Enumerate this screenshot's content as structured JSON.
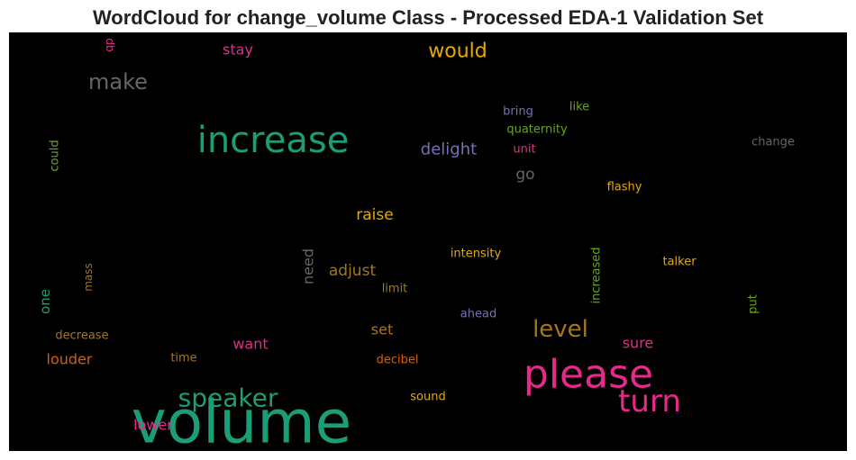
{
  "chart_data": {
    "type": "wordcloud",
    "title": "WordCloud for change_volume Class - Processed EDA-1 Validation Set",
    "background": "#000000",
    "words": [
      {
        "text": "volume",
        "color": "#1b9e77"
      },
      {
        "text": "please",
        "color": "#e7298a"
      },
      {
        "text": "increase",
        "color": "#1b9e77"
      },
      {
        "text": "speaker",
        "color": "#1b9e77"
      },
      {
        "text": "turn",
        "color": "#e7298a"
      },
      {
        "text": "level",
        "color": "#a6761d"
      },
      {
        "text": "make",
        "color": "#666666"
      },
      {
        "text": "would",
        "color": "#e6ab02"
      },
      {
        "text": "raise",
        "color": "#e6ab02"
      },
      {
        "text": "delight",
        "color": "#7570b3"
      },
      {
        "text": "adjust",
        "color": "#a6761d"
      },
      {
        "text": "louder",
        "color": "#d95f02"
      },
      {
        "text": "lower",
        "color": "#e7298a"
      },
      {
        "text": "want",
        "color": "#e7298a"
      },
      {
        "text": "stay",
        "color": "#e7298a"
      },
      {
        "text": "need",
        "color": "#666666"
      },
      {
        "text": "set",
        "color": "#a6761d"
      },
      {
        "text": "sure",
        "color": "#e7298a"
      },
      {
        "text": "go",
        "color": "#666666"
      },
      {
        "text": "one",
        "color": "#1b9e77"
      },
      {
        "text": "could",
        "color": "#66a61e"
      },
      {
        "text": "bring",
        "color": "#7570b3"
      },
      {
        "text": "like",
        "color": "#66a61e"
      },
      {
        "text": "quaternity",
        "color": "#66a61e"
      },
      {
        "text": "unit",
        "color": "#e7298a"
      },
      {
        "text": "change",
        "color": "#666666"
      },
      {
        "text": "flashy",
        "color": "#e6ab02"
      },
      {
        "text": "intensity",
        "color": "#e6ab02"
      },
      {
        "text": "increased",
        "color": "#66a61e"
      },
      {
        "text": "talker",
        "color": "#e6ab02"
      },
      {
        "text": "limit",
        "color": "#a6761d"
      },
      {
        "text": "mass",
        "color": "#a6761d"
      },
      {
        "text": "db",
        "color": "#e7298a"
      },
      {
        "text": "put",
        "color": "#66a61e"
      },
      {
        "text": "ahead",
        "color": "#7570b3"
      },
      {
        "text": "decrease",
        "color": "#a6761d"
      },
      {
        "text": "time",
        "color": "#a6761d"
      },
      {
        "text": "decibel",
        "color": "#d95f02"
      },
      {
        "text": "sound",
        "color": "#e6ab02"
      }
    ]
  }
}
